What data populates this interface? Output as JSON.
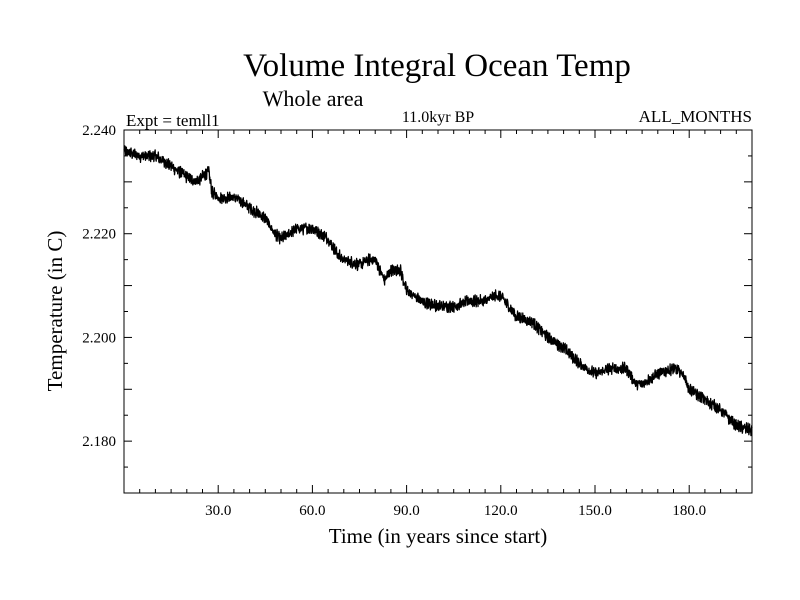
{
  "chart_data": {
    "type": "line",
    "title": "Volume Integral Ocean Temp",
    "subtitle": "Whole area",
    "annotation_left": "Expt = temll1",
    "annotation_center": "11.0kyr BP",
    "annotation_right": "ALL_MONTHS",
    "xlabel": "Time (in years since start)",
    "ylabel": "Temperature (in C)",
    "xlim": [
      0,
      200
    ],
    "ylim": [
      2.17,
      2.24
    ],
    "xticks": [
      30,
      60,
      90,
      120,
      150,
      180
    ],
    "xtick_labels": [
      "30.0",
      "60.0",
      "90.0",
      "120.0",
      "150.0",
      "180.0"
    ],
    "yticks": [
      2.18,
      2.2,
      2.22,
      2.24
    ],
    "ytick_labels": [
      "2.180",
      "2.200",
      "2.220",
      "2.240"
    ],
    "series": [
      {
        "name": "temll1",
        "color": "#000000",
        "noise_amplitude": 0.0009,
        "x": [
          0,
          5,
          10,
          15,
          20,
          23,
          25,
          27,
          28,
          30,
          35,
          38,
          40,
          45,
          48,
          50,
          55,
          58,
          60,
          65,
          68,
          70,
          75,
          78,
          80,
          83,
          85,
          88,
          90,
          95,
          100,
          105,
          110,
          115,
          118,
          120,
          125,
          130,
          135,
          140,
          145,
          150,
          155,
          160,
          163,
          165,
          170,
          175,
          178,
          180,
          185,
          190,
          195,
          200
        ],
        "y": [
          2.236,
          2.235,
          2.235,
          2.233,
          2.231,
          2.23,
          2.231,
          2.232,
          2.228,
          2.227,
          2.227,
          2.226,
          2.225,
          2.223,
          2.22,
          2.219,
          2.221,
          2.221,
          2.221,
          2.219,
          2.216,
          2.215,
          2.214,
          2.215,
          2.215,
          2.211,
          2.213,
          2.213,
          2.209,
          2.207,
          2.206,
          2.206,
          2.207,
          2.207,
          2.208,
          2.208,
          2.204,
          2.203,
          2.2,
          2.198,
          2.195,
          2.193,
          2.194,
          2.194,
          2.191,
          2.191,
          2.193,
          2.194,
          2.193,
          2.19,
          2.188,
          2.186,
          2.183,
          2.182
        ]
      }
    ]
  }
}
